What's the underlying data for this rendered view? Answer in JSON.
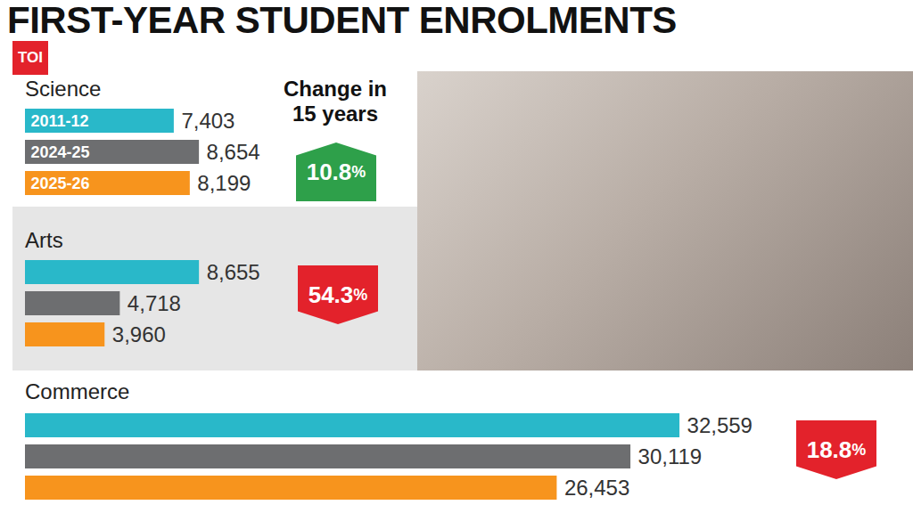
{
  "chart_data": {
    "type": "bar",
    "orientation": "horizontal",
    "title": "FIRST-YEAR STUDENT ENROLMENTS",
    "logo": "TOI",
    "categories": [
      "Science",
      "Arts",
      "Commerce"
    ],
    "series": [
      {
        "name": "2011-12",
        "color": "#29b8c9",
        "values": [
          7403,
          8655,
          32559
        ],
        "value_labels": [
          "7,403",
          "8,655",
          "32,559"
        ]
      },
      {
        "name": "2024-25",
        "color": "#6d6e70",
        "values": [
          8654,
          4718,
          30119
        ],
        "value_labels": [
          "8,654",
          "4,718",
          "30,119"
        ]
      },
      {
        "name": "2025-26",
        "color": "#f7941d",
        "values": [
          8199,
          3960,
          26453
        ],
        "value_labels": [
          "8,199",
          "3,960",
          "26,453"
        ]
      }
    ],
    "change_title": "Change in 15 years",
    "change": [
      10.8,
      -54.3,
      -18.8
    ],
    "change_labels": [
      "10.8%",
      "54.3%",
      "18.8%"
    ],
    "change_colors": [
      "#2ea04a",
      "#e3222b",
      "#e3222b"
    ],
    "xlim": [
      0,
      44000
    ],
    "xticks": [],
    "tick_labels": false,
    "grid": false,
    "data_labels": true
  }
}
